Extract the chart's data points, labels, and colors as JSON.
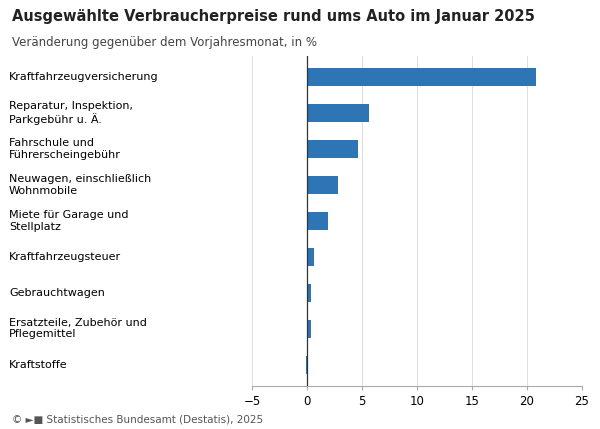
{
  "title": "Ausgewählte Verbraucherpreise rund ums Auto im Januar 2025",
  "subtitle": "Veränderung gegenüber dem Vorjahresmonat, in %",
  "categories": [
    "Kraftstoffe",
    "Ersatzteile, Zubehör und\nPflegemittel",
    "Gebrauchtwagen",
    "Kraftfahrzeugsteuer",
    "Miete für Garage und\nStellplatz",
    "Neuwagen, einschließlich\nWohnmobile",
    "Fahrschule und\nFührerscheingebühr",
    "Reparatur, Inspektion,\nParkgebühr u. Ä.",
    "Kraftfahrzeugversicherung"
  ],
  "values": [
    -0.1,
    0.4,
    0.4,
    0.6,
    1.9,
    2.8,
    4.6,
    5.6,
    20.8
  ],
  "bar_color": "#2E75B6",
  "xlim": [
    -5,
    25
  ],
  "xticks": [
    -5,
    0,
    5,
    10,
    15,
    20,
    25
  ],
  "footer": "© ►■ Statistisches Bundesamt (Destatis), 2025",
  "background_color": "#ffffff",
  "title_fontsize": 10.5,
  "subtitle_fontsize": 8.5,
  "label_fontsize": 8.0,
  "tick_fontsize": 8.5,
  "footer_fontsize": 7.5,
  "bar_height": 0.5
}
